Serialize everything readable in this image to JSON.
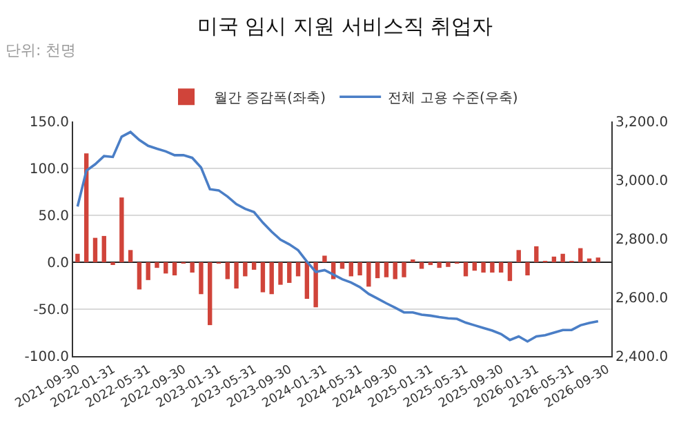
{
  "chart_data": {
    "type": "bar",
    "title": "미국 임시 지원 서비스직 취업자",
    "subtitle": "단위: 천명",
    "categories": [
      "2021-09-30",
      null,
      null,
      null,
      "2022-01-31",
      null,
      null,
      null,
      "2022-05-31",
      null,
      null,
      null,
      "2022-09-30",
      null,
      null,
      null,
      "2023-01-31",
      null,
      null,
      null,
      "2023-05-31",
      null,
      null,
      null,
      "2023-09-30",
      null,
      null,
      null,
      "2024-01-31",
      null,
      null,
      null,
      "2024-05-31",
      null,
      null,
      null,
      "2024-09-30",
      null,
      null,
      null,
      "2025-01-31",
      null,
      null,
      null,
      "2025-05-31",
      null,
      null,
      null,
      "2025-09-30",
      null,
      null,
      null,
      "2026-01-31",
      null,
      null,
      null,
      "2026-05-31",
      null,
      null,
      null,
      "2026-09-30"
    ],
    "series": [
      {
        "name": "월간 증감폭(좌축)",
        "color": "#d0443a",
        "values": [
          9,
          116,
          26,
          28,
          -2,
          69,
          13,
          -29,
          -19,
          -6,
          -12,
          -14,
          -1,
          -11,
          -34,
          -67,
          -1,
          -18,
          -28,
          -15,
          -8,
          -32,
          -34,
          -24,
          -22,
          -15,
          -39,
          -48,
          7,
          -18,
          -7,
          -15,
          -14,
          -26,
          -17,
          -16,
          -18,
          -16,
          2,
          -7,
          -3,
          -6,
          -5,
          -1,
          -15,
          -9,
          -11,
          -11,
          -11,
          -20,
          13,
          -14,
          17,
          1,
          6,
          9,
          1,
          15,
          4,
          5,
          null
        ]
      },
      {
        "name": "전체 고용 수준(우축)",
        "type": "line",
        "axis": "y2",
        "color": "#4a7ec6",
        "values": [
          2910,
          3032,
          3054,
          3082,
          3079,
          3148,
          3164,
          3137,
          3117,
          3107,
          3098,
          3085,
          3085,
          3076,
          3043,
          2969,
          2965,
          2944,
          2918,
          2902,
          2891,
          2855,
          2824,
          2797,
          2781,
          2761,
          2722,
          2687,
          2693,
          2678,
          2662,
          2651,
          2635,
          2612,
          2596,
          2580,
          2565,
          2549,
          2549,
          2541,
          2538,
          2533,
          2529,
          2527,
          2514,
          2505,
          2496,
          2487,
          2475,
          2455,
          2467,
          2450,
          2467,
          2471,
          2480,
          2489,
          2489,
          2505,
          2513,
          2519,
          null
        ]
      }
    ],
    "ylim": [
      -100,
      150
    ],
    "yticks": [
      {
        "value": -100,
        "label": "-100.0"
      },
      {
        "value": -50,
        "label": "-50.0"
      },
      {
        "value": 0,
        "label": "0.0"
      },
      {
        "value": 50,
        "label": "50.0"
      },
      {
        "value": 100,
        "label": "100.0"
      },
      {
        "value": 150,
        "label": "150.0"
      }
    ],
    "y2lim": [
      2400,
      3200
    ],
    "y2ticks": [
      {
        "value": 2400,
        "label": "2,400.0"
      },
      {
        "value": 2600,
        "label": "2,600.0"
      },
      {
        "value": 2800,
        "label": "2,800.0"
      },
      {
        "value": 3000,
        "label": "3,000.0"
      },
      {
        "value": 3200,
        "label": "3,200.0"
      }
    ],
    "grid": "y",
    "legend": "top",
    "marker": "none",
    "line_style": "solid"
  }
}
